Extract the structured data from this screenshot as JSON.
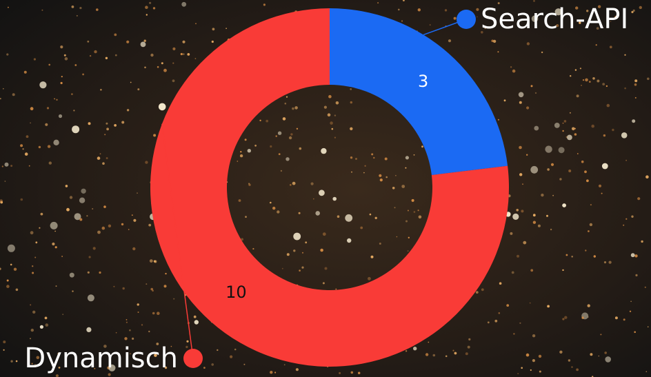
{
  "chart_data": {
    "type": "pie",
    "categories": [
      "Search-API",
      "Dynamisch"
    ],
    "values": [
      3,
      10
    ],
    "colors": [
      "#1b6af3",
      "#f93b37"
    ],
    "label_colors": [
      "#ffffff",
      "#111111"
    ]
  }
}
